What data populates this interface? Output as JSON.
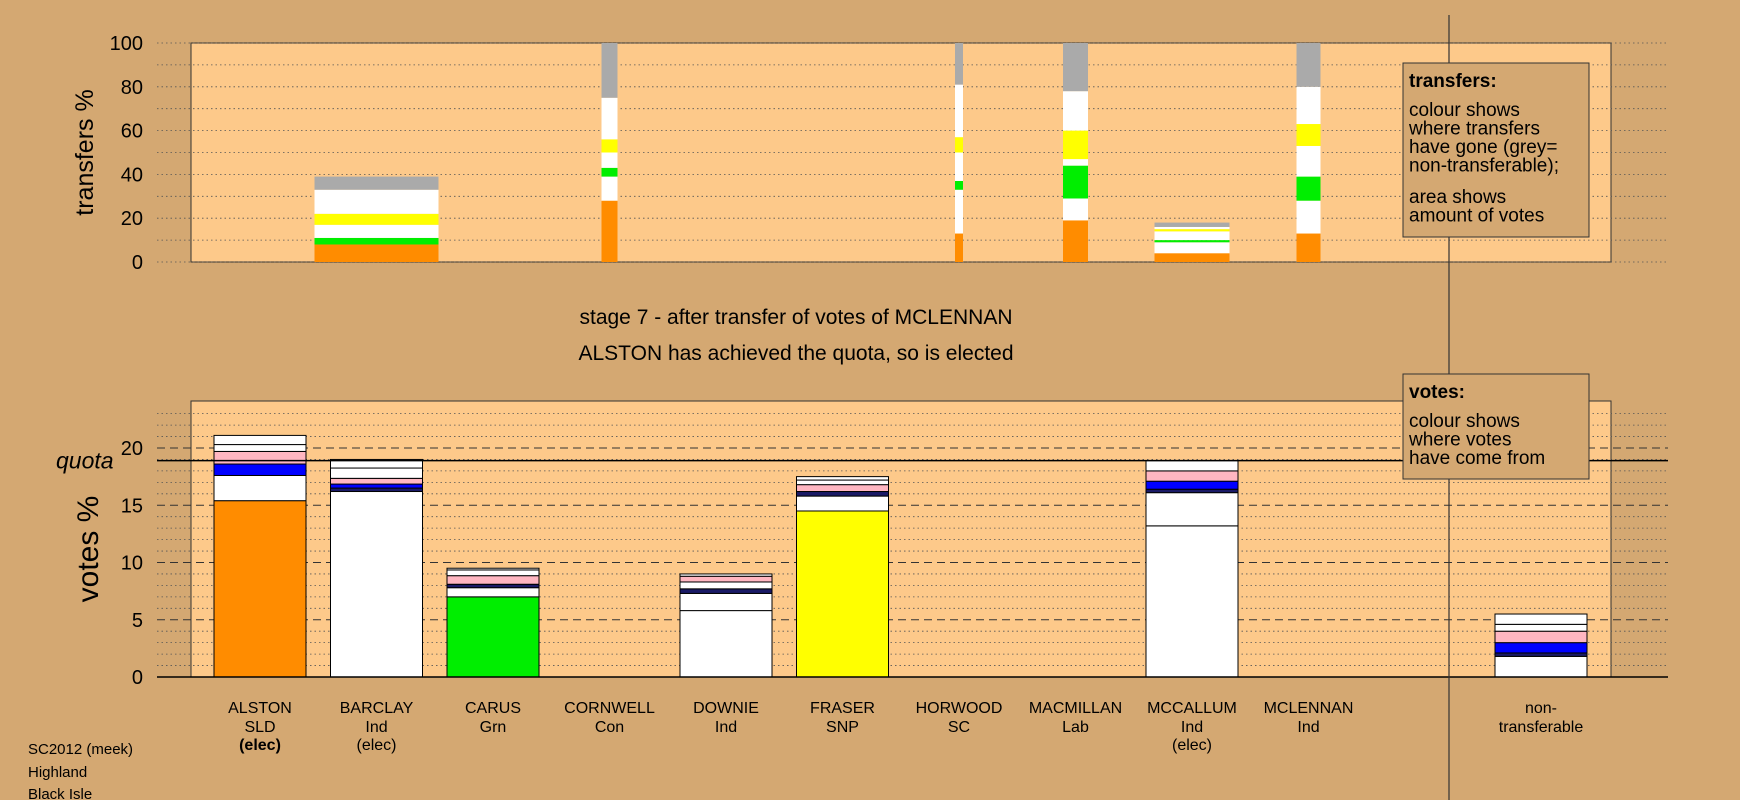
{
  "colors": {
    "page_bg": "#d4a872",
    "panel_bg": "#fdc98a",
    "orange_slt": "#ff8c00",
    "green_grn": "#00ee00",
    "yellow_snp": "#ffff00",
    "blue": "#0000ff",
    "pink": "#ffb6c1",
    "grey_nontransferable": "#aaaaaa",
    "white_ind": "#ffffff",
    "dark_navy": "#1a1a66"
  },
  "header": {
    "stage_text": "stage 7 - after transfer of votes of MCLENNAN",
    "elected_text": "ALSTON has achieved the quota, so is elected"
  },
  "footer": {
    "line1": "SC2012 (meek)",
    "line2": "Highland",
    "line3": "Black Isle"
  },
  "legend_transfers": {
    "title": "transfers:",
    "lines": [
      "colour shows",
      "where transfers",
      "have gone (grey=",
      "non-transferable);"
    ],
    "lines2": [
      "area shows",
      "amount of votes"
    ]
  },
  "legend_votes": {
    "title": "votes:",
    "lines": [
      "colour shows",
      "where votes",
      "have come from"
    ]
  },
  "chart_data": [
    {
      "type": "bar",
      "name": "transfers",
      "ylabel": "transfers %",
      "ylim": [
        0,
        100
      ],
      "yticks": [
        0,
        20,
        40,
        60,
        80,
        100
      ],
      "bars": [
        {
          "x": "BARCLAY",
          "segments": [
            {
              "v": 8,
              "c": "#ff8c00"
            },
            {
              "v": 3,
              "c": "#00ee00"
            },
            {
              "v": 6,
              "c": "#ffffff"
            },
            {
              "v": 5,
              "c": "#ffff00"
            },
            {
              "v": 11,
              "c": "#ffffff"
            },
            {
              "v": 6,
              "c": "#aaaaaa"
            }
          ]
        },
        {
          "x": "CORNWELL",
          "segments": [
            {
              "v": 28,
              "c": "#ff8c00"
            },
            {
              "v": 11,
              "c": "#ffffff"
            },
            {
              "v": 4,
              "c": "#00ee00"
            },
            {
              "v": 7,
              "c": "#ffffff"
            },
            {
              "v": 6,
              "c": "#ffff00"
            },
            {
              "v": 19,
              "c": "#ffffff"
            },
            {
              "v": 25,
              "c": "#aaaaaa"
            }
          ]
        },
        {
          "x": "HORWOOD",
          "segments": [
            {
              "v": 13,
              "c": "#ff8c00"
            },
            {
              "v": 20,
              "c": "#ffffff"
            },
            {
              "v": 4,
              "c": "#00ee00"
            },
            {
              "v": 13,
              "c": "#ffffff"
            },
            {
              "v": 7,
              "c": "#ffff00"
            },
            {
              "v": 24,
              "c": "#ffffff"
            },
            {
              "v": 19,
              "c": "#aaaaaa"
            }
          ]
        },
        {
          "x": "MACMILLAN",
          "segments": [
            {
              "v": 19,
              "c": "#ff8c00"
            },
            {
              "v": 10,
              "c": "#ffffff"
            },
            {
              "v": 15,
              "c": "#00ee00"
            },
            {
              "v": 3,
              "c": "#ffffff"
            },
            {
              "v": 13,
              "c": "#ffff00"
            },
            {
              "v": 18,
              "c": "#ffffff"
            },
            {
              "v": 22,
              "c": "#aaaaaa"
            }
          ]
        },
        {
          "x": "MCCALLUM",
          "segments": [
            {
              "v": 4,
              "c": "#ff8c00"
            },
            {
              "v": 5,
              "c": "#ffffff"
            },
            {
              "v": 1,
              "c": "#00ee00"
            },
            {
              "v": 4,
              "c": "#ffffff"
            },
            {
              "v": 1,
              "c": "#ffff00"
            },
            {
              "v": 1,
              "c": "#ffffff"
            },
            {
              "v": 2,
              "c": "#aaaaaa"
            }
          ]
        },
        {
          "x": "MCLENNAN",
          "segments": [
            {
              "v": 13,
              "c": "#ff8c00"
            },
            {
              "v": 15,
              "c": "#ffffff"
            },
            {
              "v": 11,
              "c": "#00ee00"
            },
            {
              "v": 14,
              "c": "#ffffff"
            },
            {
              "v": 10,
              "c": "#ffff00"
            },
            {
              "v": 17,
              "c": "#ffffff"
            },
            {
              "v": 20,
              "c": "#aaaaaa"
            }
          ]
        }
      ]
    },
    {
      "type": "bar",
      "name": "votes",
      "ylabel": "votes %",
      "ylim": [
        0,
        24
      ],
      "yticks": [
        0,
        5,
        10,
        15,
        20
      ],
      "quota": 18.9,
      "quota_label": "quota",
      "categories": [
        "ALSTON",
        "BARCLAY",
        "CARUS",
        "CORNWELL",
        "DOWNIE",
        "FRASER",
        "HORWOOD",
        "MACMILLAN",
        "MCCALLUM",
        "MCLENNAN",
        "non-transferable"
      ],
      "category_labels": [
        {
          "name": "ALSTON",
          "party": "SLD",
          "status": "(elec)",
          "status_bold": true
        },
        {
          "name": "BARCLAY",
          "party": "Ind",
          "status": "(elec)",
          "status_bold": false
        },
        {
          "name": "CARUS",
          "party": "Grn",
          "status": "",
          "status_bold": false
        },
        {
          "name": "CORNWELL",
          "party": "Con",
          "status": "",
          "status_bold": false
        },
        {
          "name": "DOWNIE",
          "party": "Ind",
          "status": "",
          "status_bold": false
        },
        {
          "name": "FRASER",
          "party": "SNP",
          "status": "",
          "status_bold": false
        },
        {
          "name": "HORWOOD",
          "party": "SC",
          "status": "",
          "status_bold": false
        },
        {
          "name": "MACMILLAN",
          "party": "Lab",
          "status": "",
          "status_bold": false
        },
        {
          "name": "MCCALLUM",
          "party": "Ind",
          "status": "(elec)",
          "status_bold": false
        },
        {
          "name": "MCLENNAN",
          "party": "Ind",
          "status": "",
          "status_bold": false
        },
        {
          "name": "non-",
          "party": "transferable",
          "status": "",
          "status_bold": false
        }
      ],
      "bars": [
        {
          "x": "ALSTON",
          "segments": [
            {
              "v": 15.4,
              "c": "#ff8c00"
            },
            {
              "v": 2.2,
              "c": "#ffffff"
            },
            {
              "v": 1.0,
              "c": "#0000ff"
            },
            {
              "v": 1.1,
              "c": "#ffb6c1"
            },
            {
              "v": 0.6,
              "c": "#ffffff"
            },
            {
              "v": 0.8,
              "c": "#ffffff"
            }
          ]
        },
        {
          "x": "BARCLAY",
          "segments": [
            {
              "v": 16.2,
              "c": "#ffffff"
            },
            {
              "v": 0.3,
              "c": "#1a1a66"
            },
            {
              "v": 0.35,
              "c": "#0000ff"
            },
            {
              "v": 0.5,
              "c": "#ffb6c1"
            },
            {
              "v": 0.9,
              "c": "#ffffff"
            },
            {
              "v": 0.75,
              "c": "#ffffff"
            }
          ]
        },
        {
          "x": "CARUS",
          "segments": [
            {
              "v": 7.0,
              "c": "#00ee00"
            },
            {
              "v": 0.8,
              "c": "#ffffff"
            },
            {
              "v": 0.3,
              "c": "#1a1a66"
            },
            {
              "v": 0.75,
              "c": "#ffb6c1"
            },
            {
              "v": 0.5,
              "c": "#ffffff"
            },
            {
              "v": 0.15,
              "c": "#ffffff"
            }
          ]
        },
        {
          "x": "CORNWELL",
          "segments": []
        },
        {
          "x": "DOWNIE",
          "segments": [
            {
              "v": 5.8,
              "c": "#ffffff"
            },
            {
              "v": 1.5,
              "c": "#ffffff"
            },
            {
              "v": 0.4,
              "c": "#1a1a66"
            },
            {
              "v": 0.6,
              "c": "#ffffff"
            },
            {
              "v": 0.5,
              "c": "#ffb6c1"
            },
            {
              "v": 0.2,
              "c": "#ffffff"
            }
          ]
        },
        {
          "x": "FRASER",
          "segments": [
            {
              "v": 14.5,
              "c": "#ffff00"
            },
            {
              "v": 1.3,
              "c": "#ffffff"
            },
            {
              "v": 0.4,
              "c": "#1a1a66"
            },
            {
              "v": 0.6,
              "c": "#ffb6c1"
            },
            {
              "v": 0.4,
              "c": "#ffffff"
            },
            {
              "v": 0.3,
              "c": "#ffffff"
            }
          ]
        },
        {
          "x": "HORWOOD",
          "segments": []
        },
        {
          "x": "MACMILLAN",
          "segments": []
        },
        {
          "x": "MCCALLUM",
          "segments": [
            {
              "v": 13.2,
              "c": "#ffffff"
            },
            {
              "v": 2.9,
              "c": "#ffffff"
            },
            {
              "v": 0.3,
              "c": "#1a1a66"
            },
            {
              "v": 0.7,
              "c": "#0000ff"
            },
            {
              "v": 0.9,
              "c": "#ffb6c1"
            },
            {
              "v": 0.9,
              "c": "#ffffff"
            }
          ]
        },
        {
          "x": "MCLENNAN",
          "segments": []
        },
        {
          "x": "non-transferable",
          "segments": [
            {
              "v": 1.8,
              "c": "#ffffff"
            },
            {
              "v": 0.3,
              "c": "#1a1a66"
            },
            {
              "v": 0.9,
              "c": "#0000ff"
            },
            {
              "v": 1.0,
              "c": "#ffb6c1"
            },
            {
              "v": 0.6,
              "c": "#ffffff"
            },
            {
              "v": 0.9,
              "c": "#ffffff"
            }
          ]
        }
      ]
    }
  ]
}
